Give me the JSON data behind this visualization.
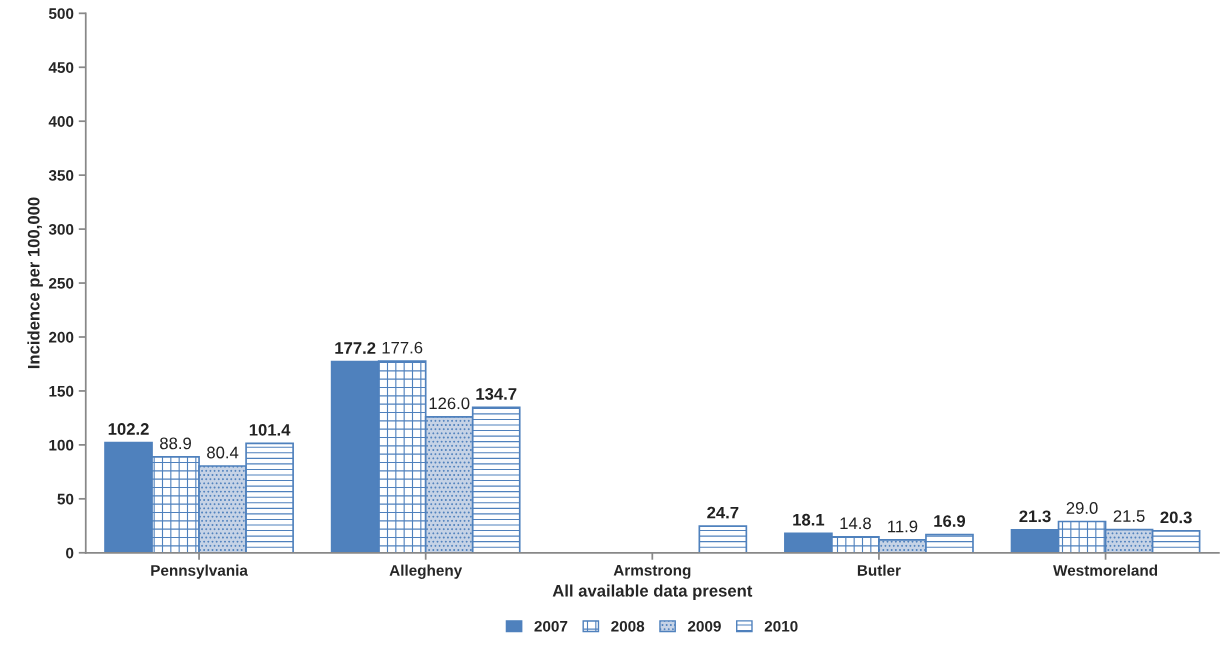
{
  "chart_data": {
    "type": "bar",
    "xlabel": "All available data present",
    "ylabel": "Incidence per 100,000",
    "categories": [
      "Pennsylvania",
      "Allegheny",
      "Armstrong",
      "Butler",
      "Westmoreland"
    ],
    "series": [
      {
        "name": "2007",
        "color": "#4f81bd",
        "values": [
          102.2,
          177.2,
          null,
          18.1,
          21.3
        ],
        "value_labels": [
          "102.2",
          "177.2",
          null,
          "18.1",
          "21.3"
        ]
      },
      {
        "name": "2008",
        "color": "#4f81bd",
        "values": [
          88.9,
          177.6,
          null,
          14.8,
          29.0
        ],
        "value_labels": [
          "88.9",
          "177.6",
          null,
          "14.8",
          "29.0"
        ]
      },
      {
        "name": "2009",
        "color": "#4f81bd",
        "values": [
          80.4,
          126.0,
          null,
          11.9,
          21.5
        ],
        "value_labels": [
          "80.4",
          "126.0",
          null,
          "11.9",
          "21.5"
        ]
      },
      {
        "name": "2010",
        "color": "#4f81bd",
        "values": [
          101.4,
          134.7,
          24.7,
          16.9,
          20.3
        ],
        "value_labels": [
          "101.4",
          "134.7",
          "24.7",
          "16.9",
          "20.3"
        ]
      }
    ],
    "ylim": [
      0,
      500
    ],
    "yticks": [
      0,
      50,
      100,
      150,
      200,
      250,
      300,
      350,
      400,
      450,
      500
    ],
    "grid": false,
    "legend": "bottom"
  }
}
